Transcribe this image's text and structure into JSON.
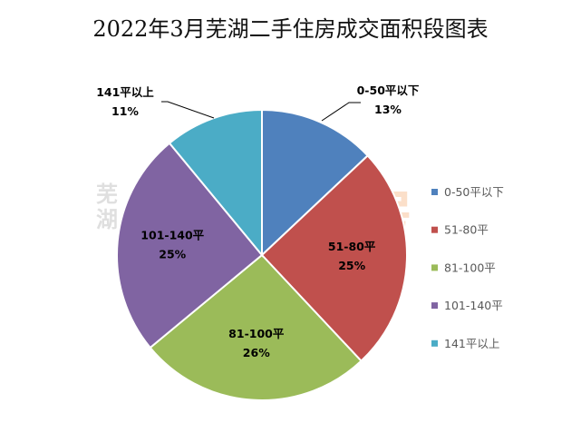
{
  "chart_data": {
    "type": "pie",
    "title": "2022年3月芜湖二手住房成交面积段图表",
    "categories": [
      "0-50平以下",
      "51-80平",
      "81-100平",
      "101-140平",
      "141平以上"
    ],
    "values": [
      13,
      25,
      26,
      25,
      11
    ],
    "data_labels": [
      "13%",
      "25%",
      "26%",
      "25%",
      "11%"
    ],
    "colors": [
      "#4f81bd",
      "#c0504d",
      "#9bbb59",
      "#8064a2",
      "#4bacc6"
    ],
    "legend": "right",
    "start_angle": "top, clockwise"
  },
  "watermark": {
    "prefix": "芜湖",
    "text": "365二手房"
  }
}
